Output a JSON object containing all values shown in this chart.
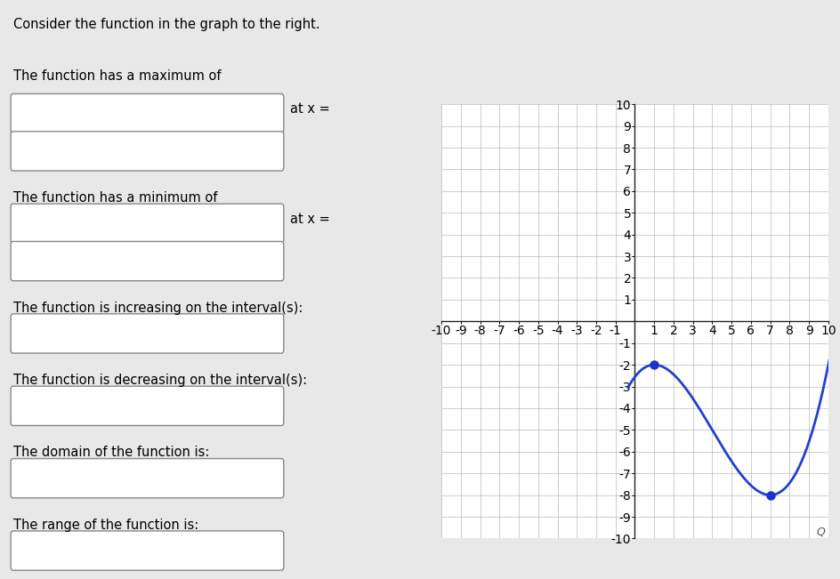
{
  "xlim": [
    -10,
    10
  ],
  "ylim": [
    -10,
    10
  ],
  "xticks": [
    -10,
    -9,
    -8,
    -7,
    -6,
    -5,
    -4,
    -3,
    -2,
    -1,
    1,
    2,
    3,
    4,
    5,
    6,
    7,
    8,
    9,
    10
  ],
  "yticks": [
    -10,
    -9,
    -8,
    -7,
    -6,
    -5,
    -4,
    -3,
    -2,
    -1,
    1,
    2,
    3,
    4,
    5,
    6,
    7,
    8,
    9,
    10
  ],
  "curve_color": "#2040d0",
  "dot_color": "#1a30d0",
  "dot_points": [
    [
      1,
      -2
    ],
    [
      7,
      -8
    ]
  ],
  "grid_color": "#aaaaaa",
  "axis_color": "#222222",
  "background_color": "#e8e8e8",
  "panel_bg": "#e8e8e8",
  "graph_bg": "#ffffff",
  "text_color": "#000000",
  "poly_a": 0.05555555555555555,
  "poly_b": -0.6666666666666666,
  "poly_c": 1.1666666666666667,
  "poly_d": -2.5555555555555554
}
